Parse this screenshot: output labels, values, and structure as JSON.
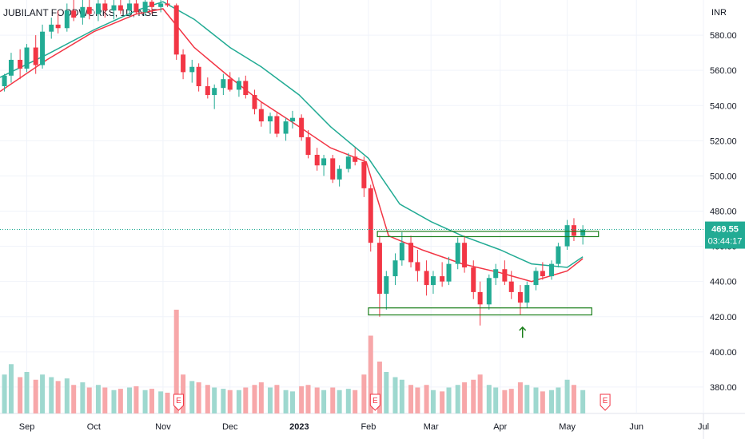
{
  "chart_data": {
    "type": "candlestick",
    "title": "JUBILANT FOODWORKS, 1D, NSE",
    "currency": "INR",
    "ylim": [
      365,
      600
    ],
    "y_ticks": [
      "580.00",
      "560.00",
      "540.00",
      "520.00",
      "500.00",
      "480.00",
      "460.00",
      "440.00",
      "420.00",
      "400.00",
      "380.00"
    ],
    "y_tick_values": [
      580,
      560,
      540,
      520,
      500,
      480,
      460,
      440,
      420,
      400,
      380
    ],
    "x_ticks": [
      "Sep",
      "Oct",
      "Nov",
      "Dec",
      "2023",
      "Feb",
      "Mar",
      "Apr",
      "May",
      "Jun",
      "Jul"
    ],
    "x_tick_dates": [
      "2022-09-01",
      "2022-10-01",
      "2022-11-01",
      "2022-12-01",
      "2023-01-01",
      "2023-02-01",
      "2023-03-01",
      "2023-04-01",
      "2023-05-01",
      "2023-06-01",
      "2023-07-01"
    ],
    "date_range": [
      "2022-08-20",
      "2023-07-01"
    ],
    "last_price": {
      "value": "469.55",
      "countdown": "03:44:17",
      "color": "#22ab94"
    },
    "colors": {
      "up": "#22ab94",
      "down": "#f23645",
      "vol_up": "#9ed8cf",
      "vol_down": "#f7a7a9",
      "ema_fast": "#f23645",
      "ema_slow": "#22ab94",
      "rect": "#1b7f1b",
      "grid": "#f0f3fa",
      "earnings": "#f23645",
      "arrow": "#1b7f1b"
    },
    "moving_averages": [
      {
        "color": "#f23645",
        "points": [
          [
            "2022-08-20",
            548
          ],
          [
            "2022-09-10",
            566
          ],
          [
            "2022-10-01",
            582
          ],
          [
            "2022-10-20",
            592
          ],
          [
            "2022-11-01",
            595
          ],
          [
            "2022-11-15",
            573
          ],
          [
            "2022-12-01",
            556
          ],
          [
            "2022-12-15",
            542
          ],
          [
            "2023-01-01",
            528
          ],
          [
            "2023-01-15",
            516
          ],
          [
            "2023-01-31",
            508
          ],
          [
            "2023-02-10",
            466
          ],
          [
            "2023-02-25",
            458
          ],
          [
            "2023-03-15",
            450
          ],
          [
            "2023-04-01",
            445
          ],
          [
            "2023-04-15",
            440
          ],
          [
            "2023-05-01",
            446
          ],
          [
            "2023-05-08",
            453
          ]
        ]
      },
      {
        "color": "#22ab94",
        "points": [
          [
            "2022-08-20",
            556
          ],
          [
            "2022-09-10",
            569
          ],
          [
            "2022-10-01",
            583
          ],
          [
            "2022-10-20",
            594
          ],
          [
            "2022-11-01",
            599
          ],
          [
            "2022-11-15",
            589
          ],
          [
            "2022-12-01",
            573
          ],
          [
            "2022-12-15",
            562
          ],
          [
            "2023-01-01",
            546
          ],
          [
            "2023-01-15",
            528
          ],
          [
            "2023-02-01",
            510
          ],
          [
            "2023-02-15",
            484
          ],
          [
            "2023-03-01",
            474
          ],
          [
            "2023-03-15",
            466
          ],
          [
            "2023-04-01",
            458
          ],
          [
            "2023-04-15",
            450
          ],
          [
            "2023-05-01",
            448
          ],
          [
            "2023-05-08",
            454
          ]
        ]
      }
    ],
    "annotations": {
      "resistance_box": {
        "x_start": "2023-02-05",
        "x_end": "2023-05-15",
        "y_top": 468.5,
        "y_bottom": 465.5
      },
      "support_box": {
        "x_start": "2023-02-01",
        "x_end": "2023-05-12",
        "y_top": 425,
        "y_bottom": 421
      },
      "arrow": {
        "date": "2023-04-11",
        "value_tip": 414,
        "value_base": 408
      },
      "earnings": [
        {
          "date": "2022-11-08",
          "label": "E"
        },
        {
          "date": "2023-02-04",
          "label": "E"
        },
        {
          "date": "2023-05-18",
          "label": "E"
        }
      ]
    },
    "candles": [
      [
        "2022-08-22",
        551,
        558,
        548,
        557,
        "up",
        30
      ],
      [
        "2022-08-25",
        557,
        570,
        553,
        566,
        "up",
        38
      ],
      [
        "2022-08-29",
        566,
        572,
        555,
        561,
        "down",
        28
      ],
      [
        "2022-09-01",
        561,
        575,
        559,
        573,
        "up",
        32
      ],
      [
        "2022-09-05",
        573,
        580,
        558,
        563,
        "down",
        26
      ],
      [
        "2022-09-08",
        563,
        586,
        561,
        582,
        "up",
        30
      ],
      [
        "2022-09-12",
        582,
        590,
        578,
        586,
        "up",
        28
      ],
      [
        "2022-09-15",
        586,
        594,
        581,
        584,
        "down",
        25
      ],
      [
        "2022-09-19",
        584,
        598,
        582,
        594,
        "up",
        27
      ],
      [
        "2022-09-22",
        594,
        600,
        588,
        590,
        "down",
        22
      ],
      [
        "2022-09-26",
        590,
        600,
        586,
        596,
        "up",
        24
      ],
      [
        "2022-09-29",
        596,
        600,
        589,
        592,
        "down",
        20
      ],
      [
        "2022-10-03",
        592,
        600,
        588,
        598,
        "up",
        22
      ],
      [
        "2022-10-06",
        598,
        600,
        590,
        594,
        "down",
        20
      ],
      [
        "2022-10-10",
        594,
        600,
        589,
        597,
        "up",
        18
      ],
      [
        "2022-10-13",
        597,
        600,
        592,
        594,
        "down",
        19
      ],
      [
        "2022-10-17",
        594,
        600,
        590,
        598,
        "up",
        20
      ],
      [
        "2022-10-20",
        598,
        600,
        592,
        593,
        "down",
        21
      ],
      [
        "2022-10-24",
        593,
        600,
        591,
        599,
        "up",
        18
      ],
      [
        "2022-10-27",
        599,
        600,
        592,
        596,
        "down",
        19
      ],
      [
        "2022-10-31",
        596,
        600,
        593,
        598,
        "up",
        17
      ],
      [
        "2022-11-03",
        598,
        600,
        596,
        597,
        "down",
        16
      ],
      [
        "2022-11-07",
        597,
        598,
        566,
        569,
        "down",
        80
      ],
      [
        "2022-11-10",
        569,
        572,
        555,
        559,
        "down",
        30
      ],
      [
        "2022-11-14",
        559,
        566,
        553,
        562,
        "up",
        25
      ],
      [
        "2022-11-17",
        562,
        564,
        548,
        551,
        "down",
        24
      ],
      [
        "2022-11-21",
        551,
        556,
        544,
        546,
        "down",
        22
      ],
      [
        "2022-11-24",
        546,
        552,
        538,
        550,
        "up",
        20
      ],
      [
        "2022-11-28",
        550,
        558,
        546,
        555,
        "up",
        19
      ],
      [
        "2022-12-01",
        555,
        559,
        548,
        549,
        "down",
        18
      ],
      [
        "2022-12-05",
        549,
        556,
        545,
        554,
        "up",
        18
      ],
      [
        "2022-12-08",
        554,
        557,
        544,
        546,
        "down",
        20
      ],
      [
        "2022-12-12",
        546,
        549,
        535,
        538,
        "down",
        22
      ],
      [
        "2022-12-15",
        538,
        542,
        528,
        531,
        "down",
        24
      ],
      [
        "2022-12-19",
        531,
        536,
        524,
        534,
        "up",
        20
      ],
      [
        "2022-12-22",
        534,
        536,
        522,
        524,
        "down",
        22
      ],
      [
        "2022-12-26",
        524,
        533,
        520,
        531,
        "up",
        18
      ],
      [
        "2022-12-29",
        531,
        537,
        527,
        533,
        "up",
        17
      ],
      [
        "2023-01-02",
        533,
        535,
        520,
        522,
        "down",
        21
      ],
      [
        "2023-01-05",
        522,
        526,
        510,
        512,
        "down",
        22
      ],
      [
        "2023-01-09",
        512,
        516,
        503,
        506,
        "down",
        20
      ],
      [
        "2023-01-12",
        506,
        512,
        500,
        510,
        "up",
        18
      ],
      [
        "2023-01-16",
        510,
        512,
        496,
        498,
        "down",
        20
      ],
      [
        "2023-01-19",
        498,
        506,
        494,
        504,
        "up",
        18
      ],
      [
        "2023-01-23",
        504,
        513,
        502,
        511,
        "up",
        19
      ],
      [
        "2023-01-26",
        511,
        516,
        506,
        508,
        "down",
        18
      ],
      [
        "2023-01-30",
        508,
        511,
        488,
        493,
        "down",
        30
      ],
      [
        "2023-02-02",
        493,
        495,
        457,
        462,
        "down",
        60
      ],
      [
        "2023-02-06",
        462,
        466,
        420,
        433,
        "down",
        40
      ],
      [
        "2023-02-09",
        433,
        446,
        424,
        443,
        "up",
        32
      ],
      [
        "2023-02-13",
        443,
        456,
        438,
        452,
        "up",
        28
      ],
      [
        "2023-02-16",
        452,
        468,
        449,
        462,
        "up",
        26
      ],
      [
        "2023-02-20",
        462,
        466,
        448,
        451,
        "down",
        22
      ],
      [
        "2023-02-23",
        451,
        458,
        440,
        446,
        "down",
        20
      ],
      [
        "2023-02-27",
        446,
        452,
        432,
        438,
        "down",
        22
      ],
      [
        "2023-03-02",
        438,
        446,
        433,
        443,
        "up",
        18
      ],
      [
        "2023-03-06",
        443,
        451,
        437,
        440,
        "down",
        17
      ],
      [
        "2023-03-09",
        440,
        454,
        438,
        450,
        "up",
        20
      ],
      [
        "2023-03-13",
        450,
        465,
        447,
        462,
        "up",
        22
      ],
      [
        "2023-03-16",
        462,
        466,
        445,
        448,
        "down",
        24
      ],
      [
        "2023-03-20",
        448,
        452,
        430,
        434,
        "down",
        26
      ],
      [
        "2023-03-23",
        434,
        440,
        415,
        427,
        "down",
        30
      ],
      [
        "2023-03-27",
        427,
        444,
        424,
        442,
        "up",
        22
      ],
      [
        "2023-03-30",
        442,
        450,
        438,
        447,
        "up",
        20
      ],
      [
        "2023-04-03",
        447,
        452,
        438,
        440,
        "down",
        18
      ],
      [
        "2023-04-06",
        440,
        446,
        430,
        434,
        "down",
        19
      ],
      [
        "2023-04-10",
        434,
        438,
        421,
        428,
        "down",
        24
      ],
      [
        "2023-04-13",
        428,
        440,
        425,
        438,
        "up",
        22
      ],
      [
        "2023-04-17",
        438,
        448,
        435,
        446,
        "up",
        20
      ],
      [
        "2023-04-20",
        446,
        451,
        441,
        443,
        "down",
        17
      ],
      [
        "2023-04-24",
        443,
        452,
        441,
        450,
        "up",
        18
      ],
      [
        "2023-04-27",
        450,
        462,
        448,
        460,
        "up",
        20
      ],
      [
        "2023-05-01",
        460,
        475,
        458,
        472,
        "up",
        26
      ],
      [
        "2023-05-04",
        472,
        476,
        463,
        466,
        "down",
        22
      ],
      [
        "2023-05-08",
        466,
        472,
        461,
        469.55,
        "up",
        18
      ]
    ]
  }
}
